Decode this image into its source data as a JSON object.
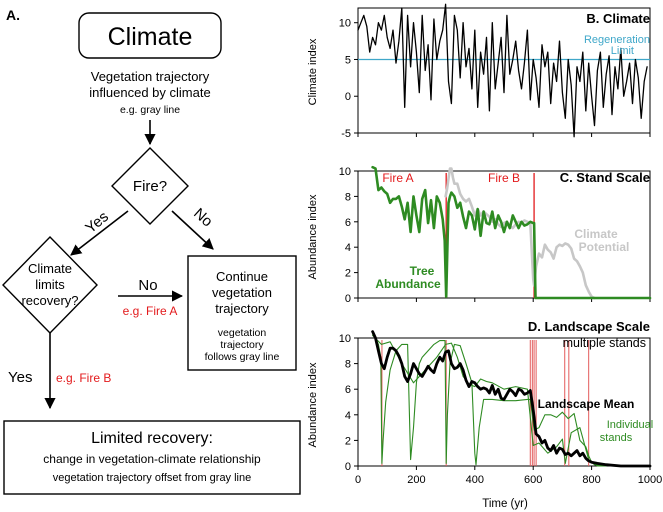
{
  "flowchart": {
    "panel_label": "A.",
    "climate_box": "Climate",
    "climate_desc_line1": "Vegetation trajectory",
    "climate_desc_line2": "influenced by climate",
    "climate_example": "e.g. gray line",
    "fire_question": "Fire?",
    "yes_label": "Yes",
    "no_label": "No",
    "limits_line1": "Climate",
    "limits_line2": "limits",
    "limits_line3": "recovery?",
    "no_label_2": "No",
    "example_fire_a": "e.g. Fire A",
    "continue_line1": "Continue",
    "continue_line2": "vegetation",
    "continue_line3": "trajectory",
    "continue_sub1": "vegetation",
    "continue_sub2": "trajectory",
    "continue_sub3": "follows gray line",
    "yes_label_2": "Yes",
    "example_fire_b": "e.g. Fire B",
    "limited_title": "Limited recovery:",
    "limited_line1": "change in vegetation-climate relationship",
    "limited_line2": "vegetation trajectory offset from gray line"
  },
  "chart_data": [
    {
      "type": "line",
      "panel_label": "B. Climate",
      "ylabel": "Climate index",
      "xlim": [
        0,
        1000
      ],
      "ylim": [
        -5,
        12
      ],
      "yticks": [
        -5,
        0,
        5,
        10
      ],
      "reference_line": {
        "label_line1": "Regeneration",
        "label_line2": "Limit",
        "y": 5,
        "color": "#3fa7c9"
      },
      "series": [
        {
          "color": "#000000",
          "x": [
            0,
            10,
            20,
            30,
            40,
            50,
            60,
            70,
            80,
            90,
            100,
            110,
            120,
            130,
            140,
            150,
            160,
            170,
            180,
            190,
            200,
            210,
            220,
            230,
            240,
            250,
            260,
            270,
            280,
            290,
            300,
            310,
            320,
            330,
            340,
            350,
            360,
            370,
            380,
            390,
            400,
            410,
            420,
            430,
            440,
            450,
            460,
            470,
            480,
            490,
            500,
            510,
            520,
            530,
            540,
            550,
            560,
            570,
            580,
            590,
            600,
            610,
            620,
            630,
            640,
            650,
            660,
            670,
            680,
            690,
            700,
            710,
            720,
            730,
            740,
            750,
            760,
            770,
            780,
            790,
            800,
            810,
            820,
            830,
            840,
            850,
            860,
            870,
            880,
            890,
            900,
            910,
            920,
            930,
            940,
            950,
            960,
            970,
            980,
            990
          ],
          "values": [
            9,
            10,
            11,
            9.5,
            6,
            8,
            7,
            10,
            9,
            11,
            8,
            6.5,
            9,
            4.5,
            7.5,
            12,
            -1.5,
            11,
            4,
            10,
            6,
            0.5,
            11,
            3.5,
            7,
            -0.5,
            10.5,
            5,
            7.5,
            9,
            12.5,
            2,
            -1,
            11,
            9,
            2.5,
            10,
            4,
            6.5,
            1,
            9,
            -1.5,
            6,
            3,
            8,
            -2,
            10,
            1,
            4.5,
            8,
            0.5,
            11,
            3,
            5,
            7.5,
            3.5,
            1,
            4.5,
            9,
            -0.5,
            5,
            2.5,
            -1.5,
            7,
            4,
            6,
            -1,
            4.5,
            2,
            7.5,
            0.5,
            -3,
            5,
            1.5,
            -5.5,
            4,
            2,
            6,
            -2,
            4.5,
            0,
            -4,
            3.5,
            6,
            -1.5,
            3,
            5.5,
            -2.5,
            4,
            1,
            6.5,
            0,
            2,
            4.5,
            -1,
            5,
            2.5,
            -3,
            2,
            4
          ]
        }
      ]
    },
    {
      "type": "line",
      "panel_label": "C. Stand Scale",
      "ylabel": "Abundance index",
      "xlim": [
        0,
        1000
      ],
      "ylim": [
        0,
        10
      ],
      "yticks": [
        0,
        2,
        4,
        6,
        8,
        10
      ],
      "events": [
        {
          "label": "Fire A",
          "x": 302,
          "color": "#e31a1c"
        },
        {
          "label": "Fire B",
          "x": 603,
          "color": "#e31a1c"
        }
      ],
      "series": [
        {
          "name_line1": "Climate",
          "name_line2": "Potential",
          "color": "#c7c7c7",
          "x": [
            300,
            305,
            310,
            315,
            320,
            325,
            330,
            340,
            350,
            360,
            370,
            380,
            390,
            400,
            410,
            420,
            430,
            440,
            450,
            460,
            470,
            480,
            490,
            500,
            510,
            520,
            530,
            540,
            550,
            560,
            570,
            580,
            590,
            600,
            603,
            610,
            620,
            630,
            640,
            650,
            660,
            670,
            680,
            690,
            700,
            710,
            720,
            730,
            740,
            750,
            760,
            770,
            780,
            790,
            800,
            810
          ],
          "values": [
            8,
            8.6,
            9.4,
            10.2,
            10.2,
            9.5,
            9,
            9,
            8.2,
            7.8,
            7.6,
            7.8,
            7.2,
            6.5,
            7,
            6.5,
            6.8,
            6.6,
            6.4,
            6,
            6.2,
            5.8,
            5.6,
            5.9,
            6,
            5.7,
            5.5,
            5.8,
            6,
            5.9,
            6.1,
            6,
            5.9,
            1.5,
            1,
            2.5,
            3.5,
            3.2,
            4.2,
            3.8,
            3.6,
            3.1,
            4,
            4.2,
            4.1,
            4.3,
            4.2,
            3.9,
            3.1,
            2.9,
            2.5,
            2,
            1,
            0.5,
            0.1,
            0
          ]
        },
        {
          "name_line1": "Tree",
          "name_line2": "Abundance",
          "color": "#2e8b22",
          "x": [
            50,
            60,
            70,
            80,
            90,
            100,
            110,
            120,
            130,
            140,
            150,
            160,
            170,
            180,
            190,
            200,
            210,
            220,
            230,
            240,
            250,
            260,
            270,
            280,
            290,
            297,
            302,
            306,
            310,
            315,
            320,
            330,
            340,
            350,
            360,
            370,
            380,
            390,
            400,
            410,
            420,
            430,
            440,
            450,
            460,
            470,
            480,
            490,
            500,
            510,
            520,
            530,
            540,
            550,
            560,
            570,
            580,
            590,
            600,
            603,
            608,
            620,
            650,
            700,
            750,
            800,
            850,
            900,
            950,
            1000
          ],
          "values": [
            10.3,
            10.2,
            8.5,
            8.7,
            8.4,
            8.2,
            7.5,
            7.8,
            7.8,
            8,
            7.2,
            6.2,
            7.5,
            5.2,
            8,
            6.5,
            5.2,
            7.8,
            8.5,
            5.9,
            7.7,
            5.5,
            8,
            7.5,
            6.2,
            4.5,
            0.1,
            4,
            7.5,
            8,
            8.3,
            8,
            7.1,
            7.5,
            6.4,
            5.5,
            6.8,
            6.5,
            5.4,
            7,
            4.9,
            6.8,
            5.9,
            5.8,
            6.8,
            5.5,
            6.5,
            6,
            5.2,
            6,
            5.5,
            6.5,
            6,
            5.5,
            6,
            5.7,
            5.8,
            6,
            5.9,
            5.9,
            0,
            0,
            0,
            0,
            0,
            0,
            0,
            0,
            0,
            0
          ]
        }
      ]
    },
    {
      "type": "line",
      "panel_label": "D. Landscape Scale",
      "subtitle": "multiple stands",
      "xlabel": "Time (yr)",
      "ylabel": "Abundance index",
      "xlim": [
        0,
        1000
      ],
      "ylim": [
        0,
        10
      ],
      "xticks": [
        0,
        200,
        400,
        600,
        800,
        1000
      ],
      "yticks": [
        0,
        2,
        4,
        6,
        8,
        10
      ],
      "event_x": [
        82,
        302,
        590,
        597,
        603,
        610,
        708,
        722,
        790
      ],
      "series": [
        {
          "name": "Landscape Mean",
          "color": "#000000",
          "x": [
            50,
            60,
            70,
            80,
            90,
            100,
            110,
            120,
            130,
            140,
            150,
            160,
            170,
            180,
            190,
            200,
            210,
            220,
            230,
            240,
            250,
            260,
            270,
            280,
            290,
            300,
            310,
            320,
            330,
            340,
            350,
            360,
            370,
            380,
            390,
            400,
            410,
            420,
            430,
            440,
            450,
            460,
            470,
            480,
            490,
            500,
            510,
            520,
            530,
            540,
            550,
            560,
            570,
            580,
            590,
            600,
            610,
            620,
            630,
            640,
            650,
            660,
            670,
            680,
            690,
            700,
            710,
            720,
            730,
            740,
            750,
            760,
            770,
            780,
            790,
            800,
            820,
            850,
            900,
            950,
            1000
          ],
          "values": [
            10.5,
            10,
            9,
            8,
            7.6,
            8.5,
            9.2,
            9.2,
            9,
            8.6,
            8,
            7,
            6.6,
            7.2,
            8,
            7.6,
            7.2,
            7,
            7.4,
            7.8,
            7.5,
            7.3,
            8,
            8.5,
            8.2,
            8.9,
            9,
            8,
            7.6,
            7.7,
            8,
            7.5,
            6.7,
            6.2,
            6.6,
            6.5,
            6.2,
            6,
            6.1,
            6,
            5.7,
            6.3,
            5.6,
            6,
            5.3,
            5.2,
            5.6,
            6,
            5.8,
            5.5,
            6,
            5.9,
            5.6,
            5.7,
            5.9,
            4.4,
            2.5,
            2.3,
            1.8,
            2,
            1.4,
            1.2,
            1.6,
            1,
            1.4,
            1.3,
            0.9,
            1,
            0.8,
            1,
            1.2,
            0.8,
            1,
            0.6,
            0.4,
            0.3,
            0.2,
            0.1,
            0,
            0,
            0
          ]
        },
        {
          "name_line1": "Individual",
          "name_line2": "stands",
          "color": "#2e8b22",
          "x": [
            50,
            60,
            70,
            78,
            82,
            86,
            95,
            110,
            130,
            150,
            170,
            180,
            190,
            200,
            210,
            220,
            240,
            260,
            280,
            298,
            302,
            306,
            315,
            330,
            350,
            370,
            390,
            400,
            404,
            415,
            430,
            460,
            500,
            540,
            580,
            590,
            603,
            620,
            640,
            660,
            680,
            700,
            720,
            740,
            760,
            780,
            790,
            800,
            820,
            850
          ],
          "values": [
            10.3,
            10,
            9.5,
            8.5,
            0.2,
            2,
            5,
            7.5,
            9,
            9.5,
            9.5,
            0.5,
            3,
            6.5,
            8,
            8.5,
            9,
            9.5,
            9.8,
            9.8,
            0.2,
            4,
            8,
            9.5,
            9.4,
            8,
            6.5,
            1,
            0.1,
            3,
            5.2,
            5.2,
            5.1,
            5.1,
            5.2,
            5.2,
            2.8,
            3,
            4,
            4,
            3.8,
            4.2,
            3.7,
            4.1,
            2,
            1.5,
            0.8,
            0.3,
            0,
            0
          ]
        },
        {
          "color": "#2e8b22",
          "x": [
            50,
            80,
            110,
            150,
            190,
            230,
            270,
            300,
            320,
            340,
            360,
            380,
            400,
            420,
            440,
            460,
            500,
            540,
            580,
            600,
            620,
            650,
            680,
            700,
            710,
            730,
            760,
            790,
            810,
            850
          ],
          "values": [
            10.2,
            9.5,
            9.7,
            8,
            6.5,
            7.5,
            8.5,
            9.5,
            9.6,
            8.5,
            7,
            6.4,
            6.2,
            6.8,
            6.6,
            6.5,
            6,
            6.2,
            6,
            1.6,
            1.8,
            1,
            1.5,
            2.1,
            0.2,
            2.6,
            3,
            0.5,
            0.1,
            0
          ]
        }
      ]
    }
  ]
}
